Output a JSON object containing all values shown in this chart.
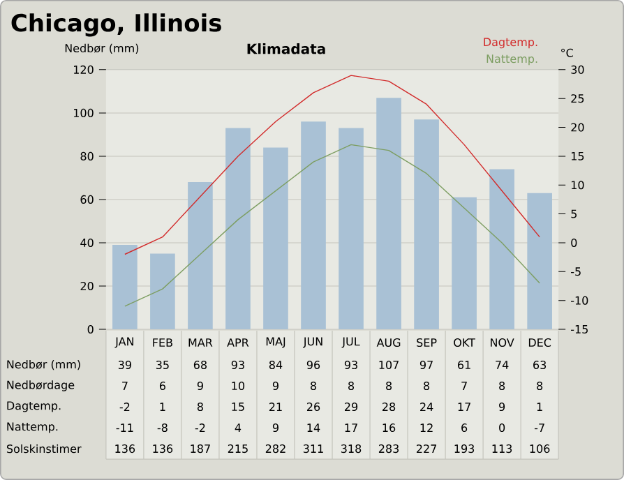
{
  "chart_data": [
    {
      "type": "bar",
      "title": "Chicago, Illinois",
      "subtitle": "Klimadata",
      "ylabel": "Nedbør (mm)",
      "y2label": "°C",
      "categories": [
        "JAN",
        "FEB",
        "MAR",
        "APR",
        "MAJ",
        "JUN",
        "JUL",
        "AUG",
        "SEP",
        "OKT",
        "NOV",
        "DEC"
      ],
      "series": [
        {
          "color": "#a9c1d5",
          "values": [
            39,
            35,
            68,
            93,
            84,
            96,
            93,
            107,
            97,
            61,
            74,
            63
          ]
        },
        {
          "name": "Dagtemp.",
          "type": "line",
          "axis": "y2",
          "color": "#d22b2b",
          "values": [
            -2,
            1,
            8,
            15,
            21,
            26,
            29,
            28,
            24,
            17,
            9,
            1
          ]
        },
        {
          "name": "Nattemp.",
          "type": "line",
          "axis": "y2",
          "color": "#7d9e62",
          "values": [
            -11,
            -8,
            -2,
            4,
            9,
            14,
            17,
            16,
            12,
            6,
            0,
            -7
          ]
        }
      ],
      "ylim": [
        0,
        120
      ],
      "yticks": [
        0,
        20,
        40,
        60,
        80,
        100,
        120
      ],
      "y2lim": [
        -15,
        30
      ],
      "y2ticks": [
        -15,
        -10,
        -5,
        0,
        5,
        10,
        15,
        20,
        25,
        30
      ],
      "grid": "y",
      "legend": "top right",
      "data_labels": true
    },
    {
      "type": "other",
      "annotations": [
        "Nedbørdage",
        "7",
        "6",
        "9",
        "10",
        "9",
        "8",
        "8",
        "8",
        "8",
        "7",
        "8",
        "8",
        "Solskinstimer",
        "136",
        "136",
        "187",
        "215",
        "282",
        "311",
        "318",
        "283",
        "227",
        "193",
        "113",
        "106"
      ]
    }
  ]
}
